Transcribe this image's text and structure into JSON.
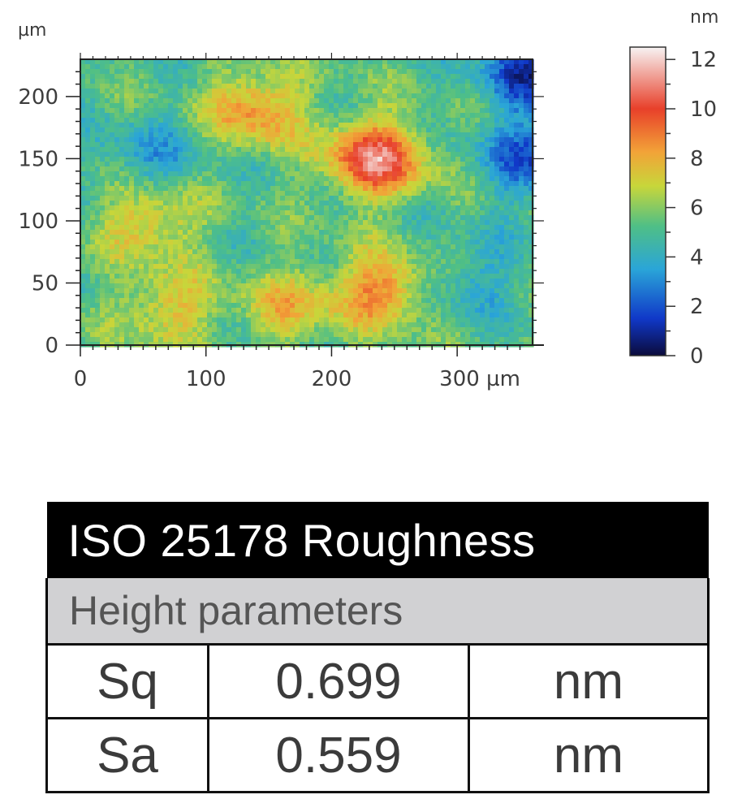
{
  "chart_data": {
    "type": "heatmap",
    "title": "",
    "x_axis": {
      "unit": "µm",
      "range": [
        0,
        360
      ],
      "ticks": [
        0,
        100,
        200,
        300
      ],
      "tick_labels": [
        "0",
        "100",
        "200",
        "300 µm"
      ]
    },
    "y_axis": {
      "unit": "µm",
      "unit_label": "µm",
      "range": [
        0,
        230
      ],
      "ticks": [
        0,
        50,
        100,
        150,
        200
      ],
      "tick_labels": [
        "0",
        "50",
        "100",
        "150",
        "200"
      ]
    },
    "colorbar": {
      "unit_label": "nm",
      "range": [
        0,
        12.5
      ],
      "ticks": [
        0,
        2,
        4,
        6,
        8,
        10,
        12
      ],
      "tick_labels": [
        "0",
        "2",
        "4",
        "6",
        "8",
        "10",
        "12"
      ],
      "colors": [
        "#0b0b3b",
        "#1038c8",
        "#2aa5d8",
        "#4fbf86",
        "#c8d63a",
        "#f2a338",
        "#e8402a",
        "#f2f2f2"
      ]
    },
    "height_features_nm": {
      "base": 5.2,
      "peaks": [
        {
          "x": 235,
          "y": 150,
          "height": 10.8
        },
        {
          "x": 140,
          "y": 190,
          "height": 8.6
        },
        {
          "x": 240,
          "y": 45,
          "height": 8.8
        },
        {
          "x": 55,
          "y": 100,
          "height": 7.8
        },
        {
          "x": 70,
          "y": 30,
          "height": 7.6
        },
        {
          "x": 165,
          "y": 30,
          "height": 7.4
        }
      ],
      "valleys": [
        {
          "x": 55,
          "y": 150,
          "height": 3.6
        },
        {
          "x": 360,
          "y": 220,
          "height": 1.4
        },
        {
          "x": 360,
          "y": 150,
          "height": 2.2
        },
        {
          "x": 310,
          "y": 55,
          "height": 3.8
        }
      ]
    }
  },
  "table": {
    "title": "ISO 25178 Roughness",
    "subtitle": "Height parameters",
    "rows": [
      {
        "param": "Sq",
        "value": "0.699",
        "unit": "nm"
      },
      {
        "param": "Sa",
        "value": "0.559",
        "unit": "nm"
      }
    ]
  }
}
